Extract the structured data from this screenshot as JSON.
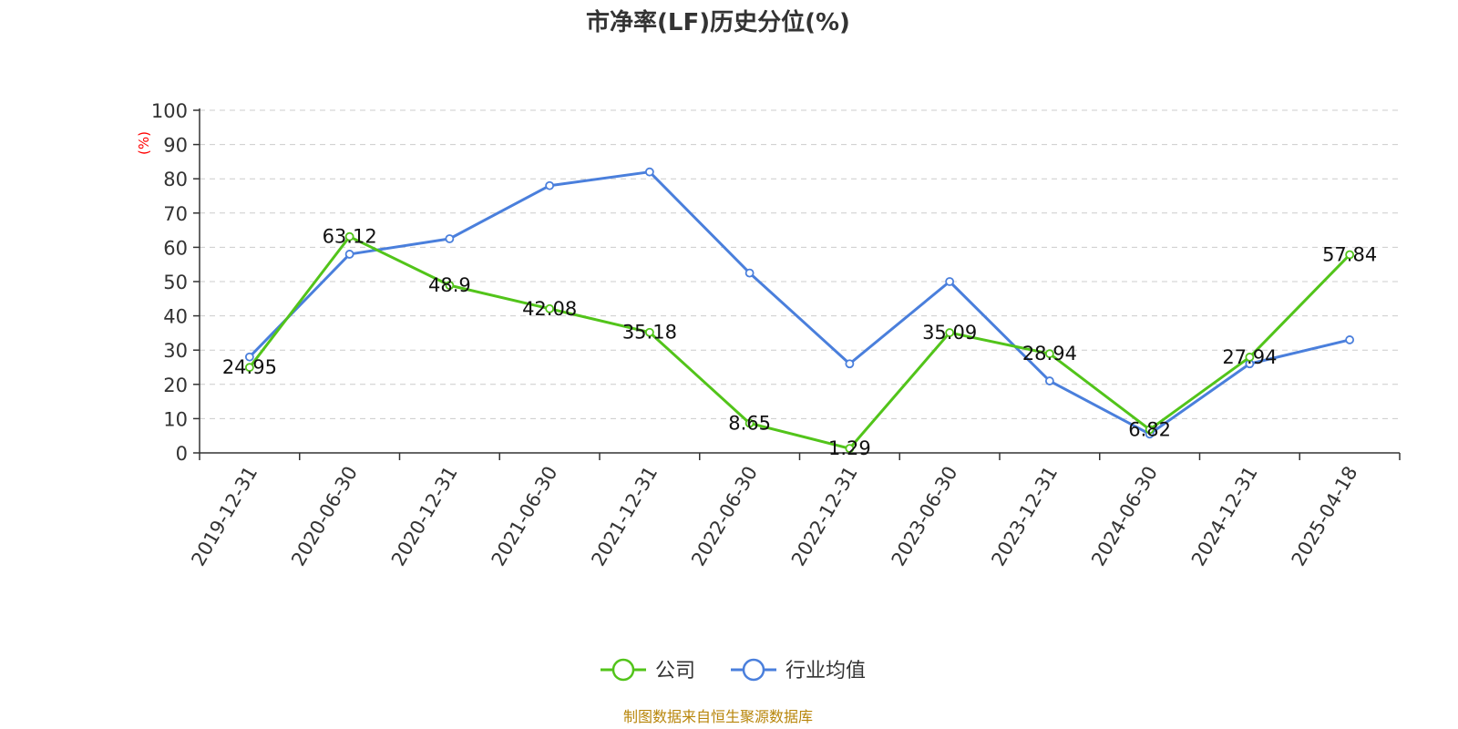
{
  "title": "市净率(LF)历史分位(%)",
  "source": "制图数据来自恒生聚源数据库",
  "colors": {
    "company": "#52c41a",
    "industry": "#4a7fdc",
    "source": "#b8860b",
    "unit": "#ff0000",
    "grid": "#cccccc",
    "axis": "#333333"
  },
  "chart_data": {
    "type": "line",
    "title": "市净率(LF)历史分位(%)",
    "ylabel": "(%)",
    "ylim": [
      0,
      100
    ],
    "yticks": [
      "0",
      "10",
      "20",
      "30",
      "40",
      "50",
      "60",
      "70",
      "80",
      "90",
      "100"
    ],
    "grid": true,
    "legend_position": "bottom",
    "categories": [
      "2019-12-31",
      "2020-06-30",
      "2020-12-31",
      "2021-06-30",
      "2021-12-31",
      "2022-06-30",
      "2022-12-31",
      "2023-06-30",
      "2023-12-31",
      "2024-06-30",
      "2024-12-31",
      "2025-04-18"
    ],
    "series": [
      {
        "name": "公司",
        "color": "#52c41a",
        "values": [
          24.95,
          63.12,
          48.9,
          42.08,
          35.18,
          8.65,
          1.29,
          35.09,
          28.94,
          6.82,
          27.94,
          57.84
        ],
        "labels": [
          "24.95",
          "63.12",
          "48.9",
          "42.08",
          "35.18",
          "8.65",
          "1.29",
          "35.09",
          "28.94",
          "6.82",
          "27.94",
          "57.84"
        ]
      },
      {
        "name": "行业均值",
        "color": "#4a7fdc",
        "values": [
          28,
          58,
          62.5,
          78,
          82,
          52.5,
          26,
          50,
          21,
          5.5,
          26,
          33
        ]
      }
    ]
  }
}
